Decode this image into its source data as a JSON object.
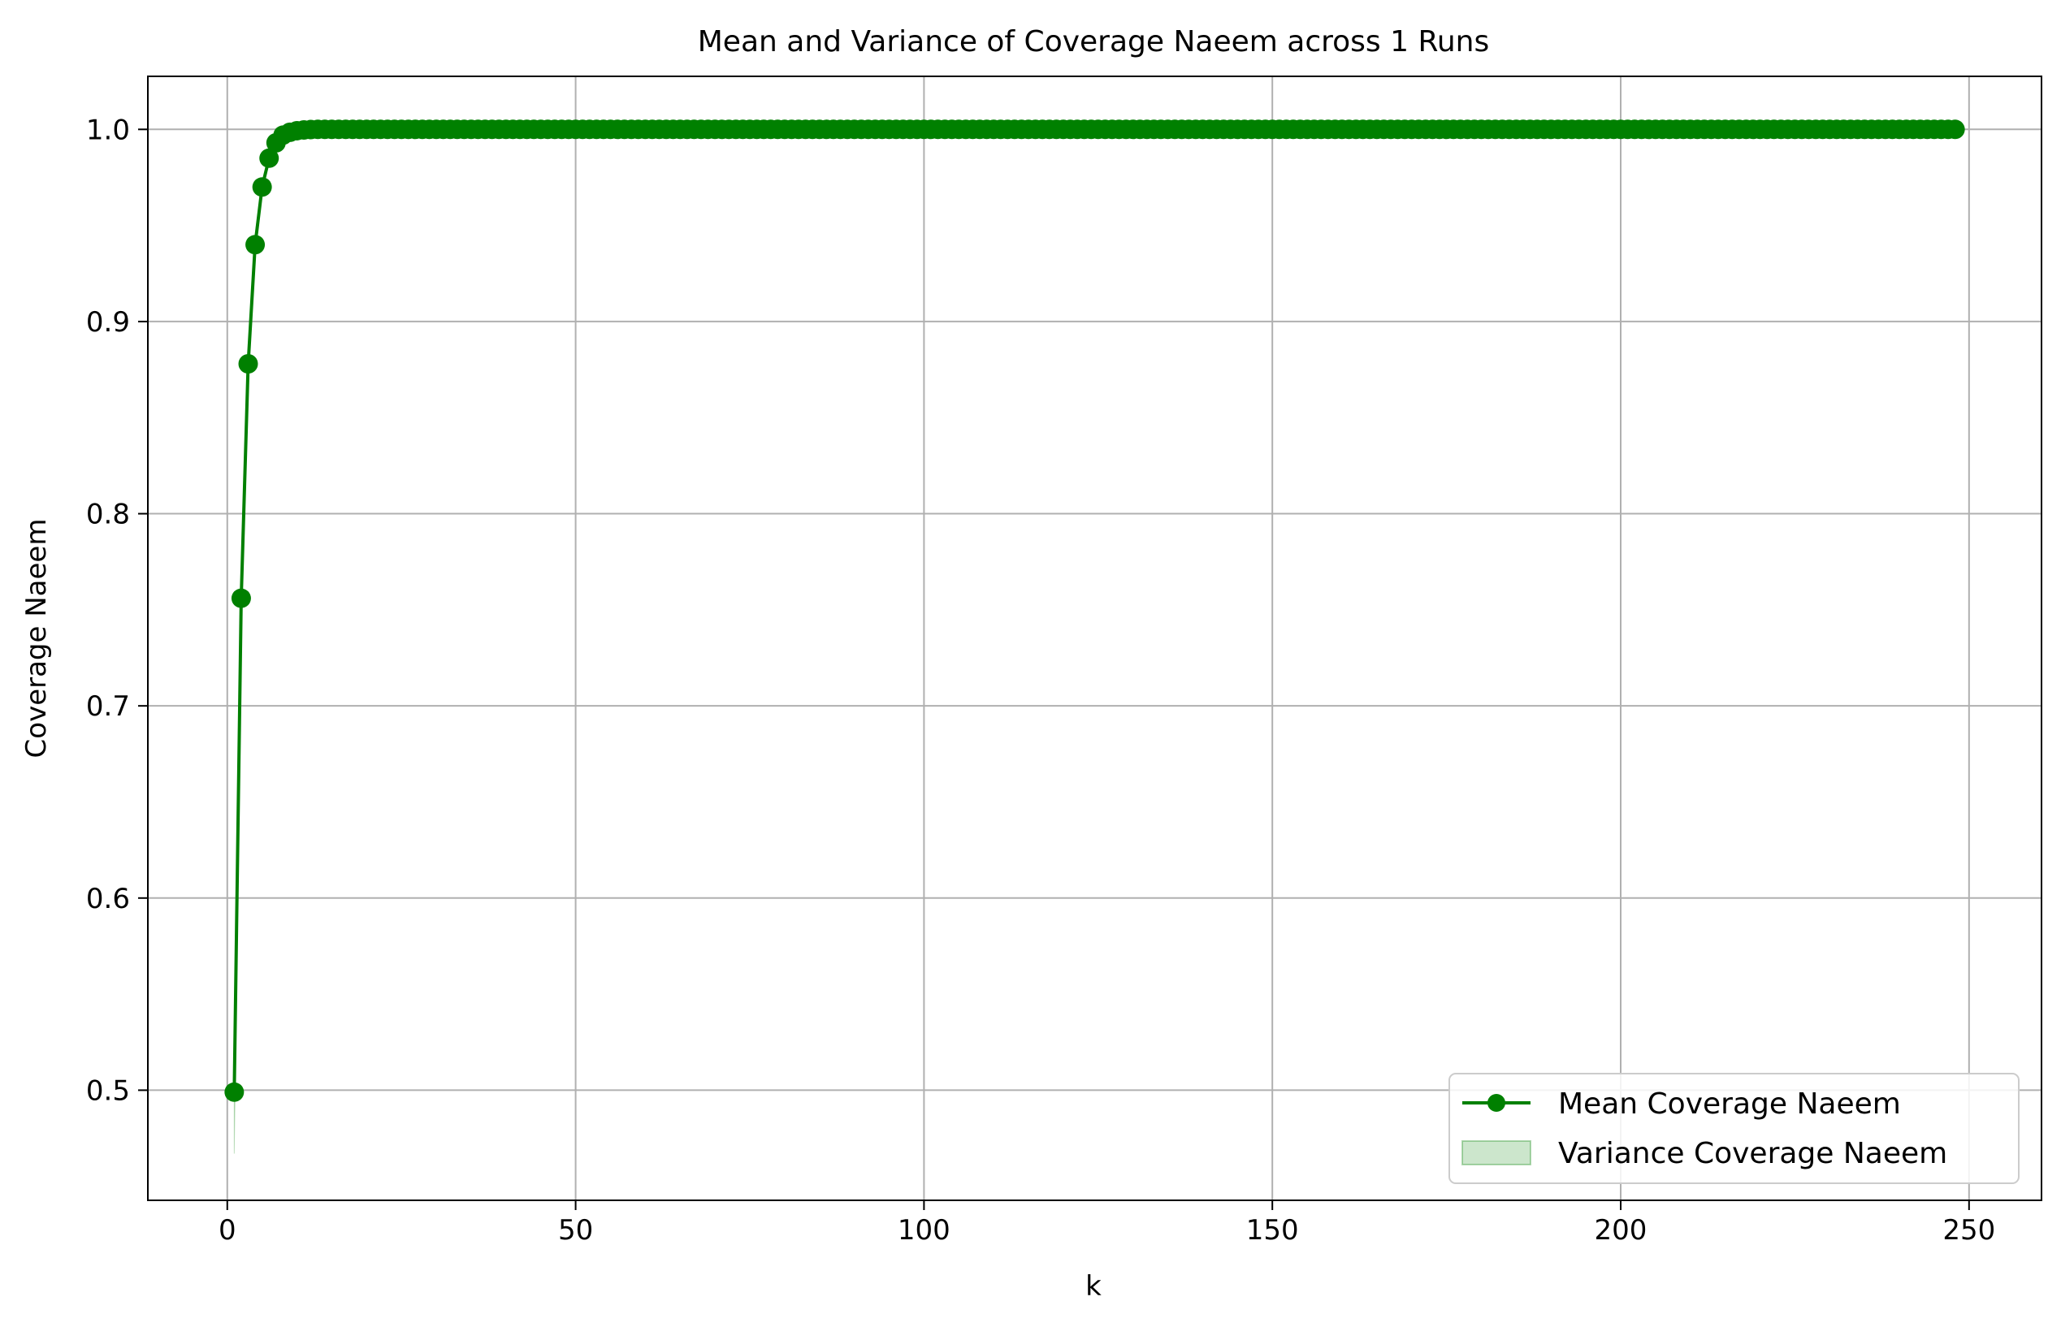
{
  "chart_data": {
    "type": "line",
    "title": "Mean and Variance of Coverage Naeem across 1 Runs",
    "xlabel": "k",
    "ylabel": "Coverage Naeem",
    "xlim": [
      -11.4,
      260.4
    ],
    "ylim": [
      0.4427,
      1.0276
    ],
    "xticks": [
      0,
      50,
      100,
      150,
      200,
      250
    ],
    "xtick_labels": [
      "0",
      "50",
      "100",
      "150",
      "200",
      "250"
    ],
    "yticks": [
      0.5,
      0.6,
      0.7,
      0.8,
      0.9,
      1.0
    ],
    "ytick_labels": [
      "0.5",
      "0.6",
      "0.7",
      "0.8",
      "0.9",
      "1.0"
    ],
    "grid": true,
    "legend_position": "lower right",
    "series": [
      {
        "name": "Mean Coverage Naeem",
        "kind": "line-marker",
        "color": "#008000",
        "x_start": 1,
        "x_end": 248,
        "head": [
          0.499,
          0.756,
          0.878,
          0.94,
          0.97,
          0.985,
          0.993,
          0.997,
          0.9985,
          0.9993,
          0.9997,
          0.9999
        ],
        "tail_value": 1.0
      },
      {
        "name": "Variance Coverage Naeem",
        "kind": "band",
        "color": "#008000",
        "opacity": 0.2,
        "x_start": 1,
        "spread": [
          0.032,
          0.012,
          0.008,
          0.005,
          0.003,
          0.002,
          0.001,
          0.0005,
          0.0002,
          0.0001
        ]
      }
    ]
  }
}
